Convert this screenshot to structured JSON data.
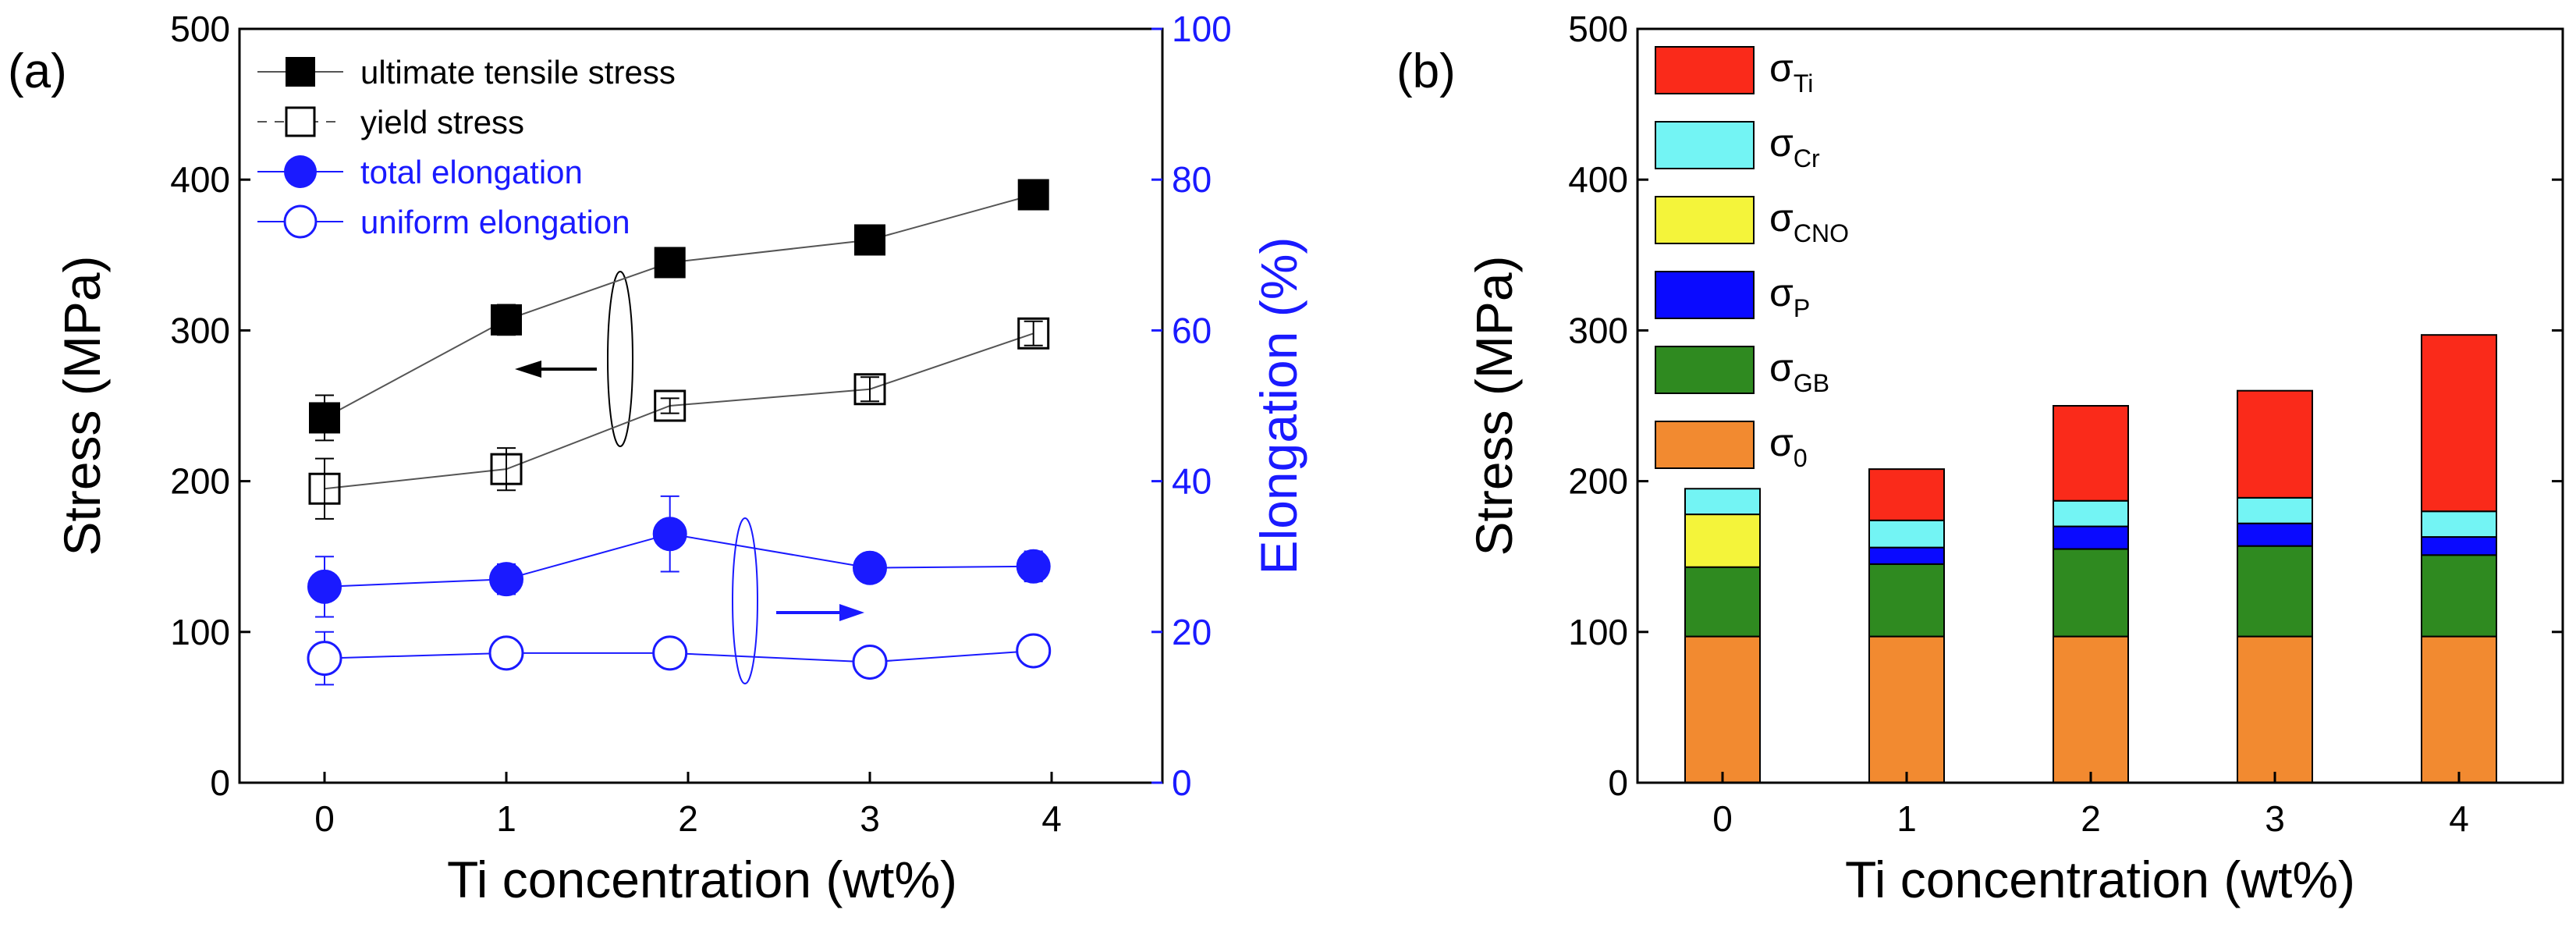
{
  "panel_labels": {
    "a": "(a)",
    "b": "(b)"
  },
  "chart_data": [
    {
      "type": "line",
      "panel": "(a)",
      "x": [
        0,
        1,
        1.9,
        3,
        3.9
      ],
      "xticks": [
        "0",
        "1",
        "2",
        "3",
        "4"
      ],
      "xlim": [
        -0.5,
        4.5
      ],
      "xlabel": "Ti concentration (wt%)",
      "ylabel_left": "Stress (MPa)",
      "ylim_left": [
        0,
        500
      ],
      "yticks_left": [
        "0",
        "100",
        "200",
        "300",
        "400",
        "500"
      ],
      "ylabel_right": "Elongation (%)",
      "ylim_right": [
        0,
        100
      ],
      "yticks_right": [
        "0",
        "20",
        "40",
        "60",
        "80",
        "100"
      ],
      "legend_position": "top-left",
      "series": [
        {
          "name": "ultimate tensile stress",
          "axis": "left",
          "marker": "square-filled",
          "color": "#000000",
          "values": [
            242,
            307,
            345,
            360,
            390
          ],
          "errors": [
            15,
            10,
            5,
            5,
            5
          ]
        },
        {
          "name": "yield stress",
          "axis": "left",
          "marker": "square-open",
          "color": "#000000",
          "values": [
            195,
            208,
            250,
            261,
            298
          ],
          "errors": [
            20,
            14,
            5,
            8,
            8
          ]
        },
        {
          "name": "total elongation",
          "axis": "right",
          "marker": "circle-filled",
          "color": "#1a1aff",
          "values": [
            26,
            27,
            33,
            28.5,
            28.7
          ],
          "errors": [
            4,
            2,
            5,
            1,
            2
          ]
        },
        {
          "name": "uniform elongation",
          "axis": "right",
          "marker": "circle-open",
          "color": "#1a1aff",
          "values": [
            16.5,
            17.2,
            17.2,
            16,
            17.5
          ],
          "errors": [
            3.5,
            1,
            1,
            1,
            1
          ]
        }
      ],
      "annotations": [
        {
          "type": "ellipse-with-arrow",
          "points_to": "left axis (Stress)"
        },
        {
          "type": "ellipse-with-arrow",
          "points_to": "right axis (Elongation)"
        }
      ]
    },
    {
      "type": "bar",
      "stacked": true,
      "panel": "(b)",
      "categories": [
        "0",
        "1",
        "2",
        "3",
        "4"
      ],
      "xlabel": "Ti concentration (wt%)",
      "ylabel": "Stress (MPa)",
      "ylim": [
        0,
        500
      ],
      "yticks": [
        "0",
        "100",
        "200",
        "300",
        "400",
        "500"
      ],
      "legend_position": "top-left",
      "series": [
        {
          "name": "σ0",
          "sigma": "σ",
          "sub": "0",
          "color": "#f28a30",
          "values": [
            97,
            97,
            97,
            97,
            97
          ]
        },
        {
          "name": "σGB",
          "sigma": "σ",
          "sub": "GB",
          "color": "#2f8a20",
          "values": [
            46,
            48,
            58,
            60,
            54
          ]
        },
        {
          "name": "σP",
          "sigma": "σ",
          "sub": "P",
          "color": "#0a0aff",
          "values": [
            0,
            11,
            15,
            15,
            12
          ]
        },
        {
          "name": "σCNO",
          "sigma": "σ",
          "sub": "CNO",
          "color": "#f4f43a",
          "values": [
            35,
            0,
            0,
            0,
            0
          ]
        },
        {
          "name": "σCr",
          "sigma": "σ",
          "sub": "Cr",
          "color": "#73f4f4",
          "values": [
            17,
            18,
            17,
            17,
            17
          ]
        },
        {
          "name": "σTi",
          "sigma": "σ",
          "sub": "Ti",
          "color": "#fa2a1a",
          "values": [
            0,
            34,
            63,
            71,
            117
          ]
        }
      ]
    }
  ]
}
